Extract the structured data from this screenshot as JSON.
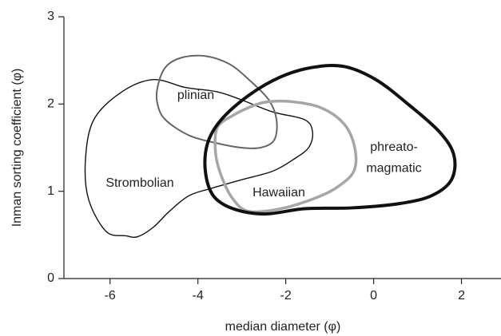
{
  "chart_data": {
    "type": "region",
    "x_label": "median diameter (φ)",
    "y_label": "Inman sorting coefficient (φ)",
    "xlim": [
      -7.05,
      2.9
    ],
    "ylim": [
      0,
      3
    ],
    "xticks": [
      -6,
      -4,
      -2,
      0,
      2
    ],
    "yticks": [
      0,
      1,
      2,
      3
    ],
    "series": [
      {
        "name": "Strombolian",
        "color": "#111111",
        "x": [
          -5.64,
          -6.09,
          -6.49,
          -6.56,
          -6.37,
          -5.73,
          -5.01,
          -4.29,
          -3.56,
          -3.02,
          -2.3,
          -1.57,
          -1.39,
          -1.48,
          -1.84,
          -2.3,
          -3.02,
          -3.65,
          -4.2,
          -4.65,
          -5.01,
          -5.37
        ],
        "values": [
          0.49,
          0.54,
          0.91,
          1.36,
          1.82,
          2.14,
          2.28,
          2.19,
          2.14,
          2.05,
          1.91,
          1.82,
          1.68,
          1.5,
          1.36,
          1.23,
          1.13,
          1.04,
          0.95,
          0.77,
          0.59,
          0.48
        ]
      },
      {
        "name": "plinian",
        "color": "#666666",
        "x": [
          -4.92,
          -4.74,
          -4.38,
          -3.83,
          -3.29,
          -2.84,
          -2.39,
          -2.21,
          -2.26,
          -2.57,
          -3.02,
          -3.56,
          -4.2,
          -4.74,
          -4.92
        ],
        "values": [
          2.19,
          2.42,
          2.53,
          2.55,
          2.46,
          2.28,
          2.05,
          1.82,
          1.59,
          1.5,
          1.5,
          1.55,
          1.64,
          1.82,
          2.0
        ]
      },
      {
        "name": "Hawaiian",
        "color": "#a6a6a6",
        "x": [
          -3.56,
          -3.2,
          -2.84,
          -2.48,
          -1.93,
          -1.21,
          -0.67,
          -0.43,
          -0.45,
          -0.85,
          -1.39,
          -2.12,
          -2.84,
          -3.2,
          -3.47,
          -3.6
        ],
        "values": [
          1.73,
          1.87,
          1.96,
          2.02,
          2.03,
          1.96,
          1.77,
          1.5,
          1.23,
          1.04,
          0.91,
          0.8,
          0.77,
          0.91,
          1.18,
          1.45
        ]
      },
      {
        "name": "phreato-\nmagmatic",
        "color": "#111111",
        "x": [
          -3.78,
          -3.47,
          -2.84,
          -2.12,
          -1.39,
          -0.67,
          0.05,
          0.78,
          1.5,
          1.83,
          1.77,
          1.32,
          0.6,
          -0.49,
          -1.57,
          -2.48,
          -3.2,
          -3.65,
          -3.83
        ],
        "values": [
          1.55,
          1.82,
          2.1,
          2.31,
          2.42,
          2.43,
          2.28,
          2.0,
          1.68,
          1.41,
          1.13,
          0.95,
          0.86,
          0.81,
          0.8,
          0.74,
          0.8,
          0.95,
          1.23
        ]
      }
    ]
  }
}
